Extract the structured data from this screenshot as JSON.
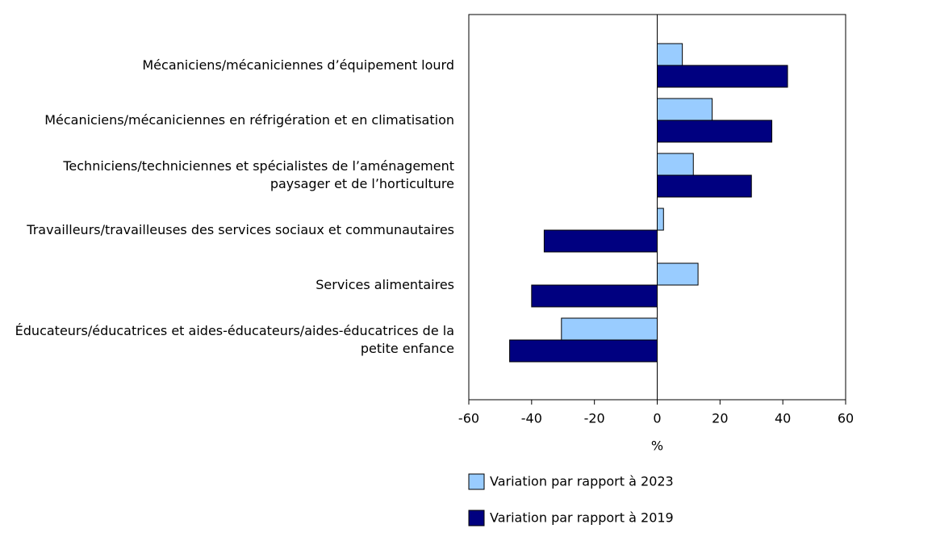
{
  "chart_data": {
    "type": "bar",
    "orientation": "horizontal",
    "categories": [
      "Mécaniciens/mécaniciennes d’équipement lourd",
      "Mécaniciens/mécaniciennes en réfrigération et en climatisation",
      "Techniciens/techniciennes et spécialistes de l’aménagement paysager et de l’horticulture",
      "Travailleurs/travailleuses des services sociaux et communautaires",
      "Services alimentaires",
      "Éducateurs/éducatrices et aides-éducateurs/aides-éducatrices de la petite enfance"
    ],
    "series": [
      {
        "name": "Variation par rapport à 2023",
        "color": "#99ccff",
        "values": [
          8,
          17.5,
          11.5,
          2,
          13,
          -30.5
        ]
      },
      {
        "name": "Variation par rapport à 2019",
        "color": "#000080",
        "values": [
          41.5,
          36.5,
          30,
          -36,
          -40,
          -47
        ]
      }
    ],
    "xlabel": "%",
    "xlim": [
      -60,
      60
    ],
    "xticks": [
      -60,
      -40,
      -20,
      0,
      20,
      40,
      60
    ]
  }
}
